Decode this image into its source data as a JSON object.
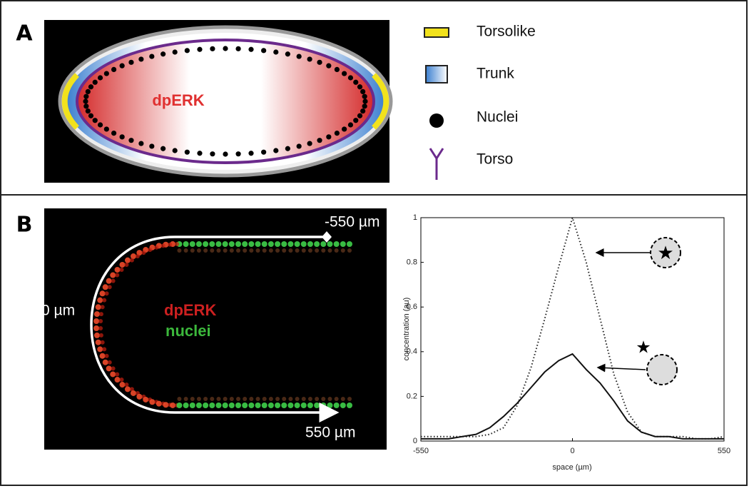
{
  "panel_a": {
    "label": "A",
    "diagram_label": "dpERK",
    "legend": [
      "Torsolike",
      "Trunk",
      "Nuclei",
      "Torso"
    ]
  },
  "panel_b": {
    "label": "B",
    "image_labels": {
      "top": "-550 µm",
      "left": "0 µm",
      "bottom": "550 µm",
      "stain_1": "dpERK",
      "stain_2": "nuclei"
    }
  },
  "chart_data": {
    "type": "line",
    "xlabel": "space (µm)",
    "ylabel": "concentration (au)",
    "x": [
      -550,
      -500,
      -450,
      -400,
      -350,
      -300,
      -250,
      -200,
      -150,
      -100,
      -50,
      0,
      50,
      100,
      150,
      200,
      250,
      300,
      350,
      400,
      450,
      500,
      550
    ],
    "series": [
      {
        "color": "#222222",
        "style": "dotted",
        "values": [
          0.02,
          0.02,
          0.02,
          0.02,
          0.02,
          0.03,
          0.06,
          0.16,
          0.33,
          0.55,
          0.78,
          1.0,
          0.8,
          0.55,
          0.3,
          0.13,
          0.04,
          0.02,
          0.02,
          0.02,
          0.01,
          0.01,
          0.02
        ]
      },
      {
        "color": "#111111",
        "style": "solid",
        "values": [
          0.01,
          0.01,
          0.01,
          0.02,
          0.03,
          0.06,
          0.11,
          0.17,
          0.24,
          0.31,
          0.36,
          0.39,
          0.32,
          0.26,
          0.18,
          0.09,
          0.04,
          0.02,
          0.02,
          0.01,
          0.01,
          0.01,
          0.01
        ]
      }
    ],
    "xlim": [
      -550,
      550
    ],
    "ylim": [
      0,
      1
    ],
    "xticks": [
      -550,
      0,
      550
    ],
    "yticks": [
      0,
      0.2,
      0.4,
      0.6,
      0.8,
      1
    ]
  }
}
